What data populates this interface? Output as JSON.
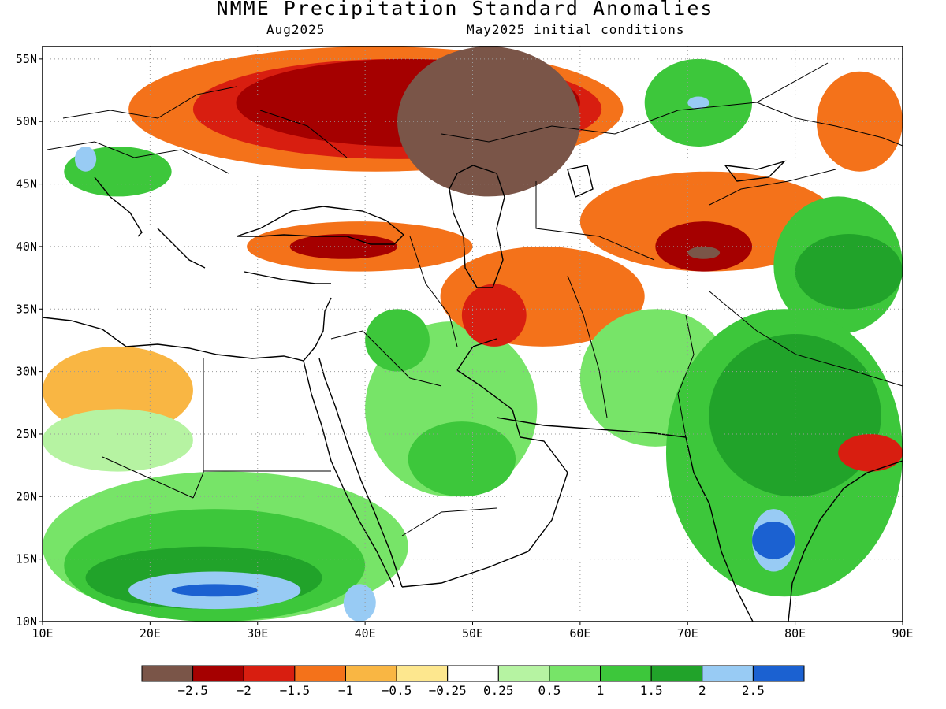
{
  "title": "NMME Precipitation Standard Anomalies",
  "target_month": "Aug2025",
  "initial_conditions": "May2025 initial conditions",
  "map": {
    "lon_range": [
      10,
      90
    ],
    "lat_range": [
      10,
      56
    ],
    "lon_ticks": [
      {
        "value": 10,
        "label": "10E"
      },
      {
        "value": 20,
        "label": "20E"
      },
      {
        "value": 30,
        "label": "30E"
      },
      {
        "value": 40,
        "label": "40E"
      },
      {
        "value": 50,
        "label": "50E"
      },
      {
        "value": 60,
        "label": "60E"
      },
      {
        "value": 70,
        "label": "70E"
      },
      {
        "value": 80,
        "label": "80E"
      },
      {
        "value": 90,
        "label": "90E"
      }
    ],
    "lat_ticks": [
      {
        "value": 10,
        "label": "10N"
      },
      {
        "value": 15,
        "label": "15N"
      },
      {
        "value": 20,
        "label": "20N"
      },
      {
        "value": 25,
        "label": "25N"
      },
      {
        "value": 30,
        "label": "30N"
      },
      {
        "value": 35,
        "label": "35N"
      },
      {
        "value": 40,
        "label": "40N"
      },
      {
        "value": 45,
        "label": "45N"
      },
      {
        "value": 50,
        "label": "50N"
      },
      {
        "value": 55,
        "label": "55N"
      }
    ],
    "gridlines": "dotted",
    "regions": [
      {
        "name": "nw-africa-dry",
        "level": -0.5,
        "lon": [
          10,
          24
        ],
        "lat": [
          25,
          32
        ]
      },
      {
        "name": "n-africa-wet",
        "level": 0.25,
        "lon": [
          10,
          24
        ],
        "lat": [
          22,
          27
        ]
      },
      {
        "name": "sahel-wet",
        "level": 0.5,
        "lon": [
          10,
          44
        ],
        "lat": [
          10,
          22
        ]
      },
      {
        "name": "sahel-wet2",
        "level": 1,
        "lon": [
          12,
          40
        ],
        "lat": [
          10,
          19
        ]
      },
      {
        "name": "sahel-wet3",
        "level": 1.5,
        "lon": [
          14,
          36
        ],
        "lat": [
          11,
          16
        ]
      },
      {
        "name": "sahel-wet4",
        "level": 2,
        "lon": [
          18,
          34
        ],
        "lat": [
          11,
          14
        ]
      },
      {
        "name": "sahel-wet5",
        "level": 2.5,
        "lon": [
          22,
          30
        ],
        "lat": [
          12,
          13
        ]
      },
      {
        "name": "sahel-wet6",
        "level": 2,
        "lon": [
          38,
          41
        ],
        "lat": [
          10,
          13
        ]
      },
      {
        "name": "arabia-wet",
        "level": 0.5,
        "lon": [
          40,
          56
        ],
        "lat": [
          20,
          34
        ]
      },
      {
        "name": "arabia-wet2",
        "level": 1,
        "lon": [
          44,
          54
        ],
        "lat": [
          20,
          26
        ]
      },
      {
        "name": "levant-wet",
        "level": 1,
        "lon": [
          40,
          46
        ],
        "lat": [
          30,
          35
        ]
      },
      {
        "name": "europe-dry",
        "level": -1,
        "lon": [
          18,
          64
        ],
        "lat": [
          46,
          56
        ]
      },
      {
        "name": "europe-dry2",
        "level": -1.5,
        "lon": [
          24,
          62
        ],
        "lat": [
          47,
          55
        ]
      },
      {
        "name": "russia-dry",
        "level": -2,
        "lon": [
          28,
          60
        ],
        "lat": [
          48,
          55
        ]
      },
      {
        "name": "russia-dry3",
        "level": -2.5,
        "lon": [
          43,
          60
        ],
        "lat": [
          44,
          56
        ]
      },
      {
        "name": "turkey-dry",
        "level": -1,
        "lon": [
          29,
          50
        ],
        "lat": [
          38,
          42
        ]
      },
      {
        "name": "turkey-dry2",
        "level": -2,
        "lon": [
          33,
          43
        ],
        "lat": [
          39,
          41
        ]
      },
      {
        "name": "iran-dry",
        "level": -1,
        "lon": [
          47,
          66
        ],
        "lat": [
          32,
          40
        ]
      },
      {
        "name": "iran-dry2",
        "level": -1.5,
        "lon": [
          49,
          55
        ],
        "lat": [
          32,
          37
        ]
      },
      {
        "name": "central-asia-dry",
        "level": -1,
        "lon": [
          60,
          84
        ],
        "lat": [
          38,
          46
        ]
      },
      {
        "name": "tajik-dry",
        "level": -2,
        "lon": [
          67,
          76
        ],
        "lat": [
          38,
          42
        ]
      },
      {
        "name": "tajik-dry2",
        "level": -2.5,
        "lon": [
          70,
          73
        ],
        "lat": [
          39,
          40
        ]
      },
      {
        "name": "siberia-wet",
        "level": 1,
        "lon": [
          66,
          76
        ],
        "lat": [
          48,
          55
        ]
      },
      {
        "name": "siberia-wet2",
        "level": 2,
        "lon": [
          70,
          72
        ],
        "lat": [
          51,
          52
        ]
      },
      {
        "name": "mongolia-dry",
        "level": -1,
        "lon": [
          82,
          90
        ],
        "lat": [
          46,
          54
        ]
      },
      {
        "name": "china-wet",
        "level": 1,
        "lon": [
          78,
          90
        ],
        "lat": [
          33,
          44
        ]
      },
      {
        "name": "china-wet2",
        "level": 1.5,
        "lon": [
          80,
          90
        ],
        "lat": [
          35,
          41
        ]
      },
      {
        "name": "pakistan-wet",
        "level": 0.5,
        "lon": [
          60,
          74
        ],
        "lat": [
          24,
          35
        ]
      },
      {
        "name": "india-wet",
        "level": 1,
        "lon": [
          68,
          90
        ],
        "lat": [
          12,
          35
        ]
      },
      {
        "name": "india-wet2",
        "level": 1.5,
        "lon": [
          72,
          88
        ],
        "lat": [
          20,
          33
        ]
      },
      {
        "name": "india-wet3",
        "level": 2,
        "lon": [
          76,
          80
        ],
        "lat": [
          14,
          19
        ]
      },
      {
        "name": "india-wet4",
        "level": 2.5,
        "lon": [
          76,
          80
        ],
        "lat": [
          15,
          18
        ]
      },
      {
        "name": "bengal-dry",
        "level": -1.5,
        "lon": [
          84,
          90
        ],
        "lat": [
          22,
          25
        ]
      },
      {
        "name": "balkans-wet",
        "level": 1,
        "lon": [
          12,
          22
        ],
        "lat": [
          44,
          48
        ]
      },
      {
        "name": "alps-wet",
        "level": 2,
        "lon": [
          13,
          15
        ],
        "lat": [
          46,
          48
        ]
      }
    ]
  },
  "colorbar": {
    "colors": [
      "#7a5548",
      "#a50000",
      "#d81e10",
      "#f4721a",
      "#f9b643",
      "#fde78e",
      "#ffffff",
      "#b6f3a2",
      "#77e468",
      "#3dc73b",
      "#21a32a",
      "#98cbf4",
      "#1b61d1"
    ],
    "labels": [
      "−2.5",
      "−2",
      "−1.5",
      "−1",
      "−0.5",
      "−0.25",
      "0.25",
      "0.5",
      "1",
      "1.5",
      "2",
      "2.5"
    ]
  }
}
